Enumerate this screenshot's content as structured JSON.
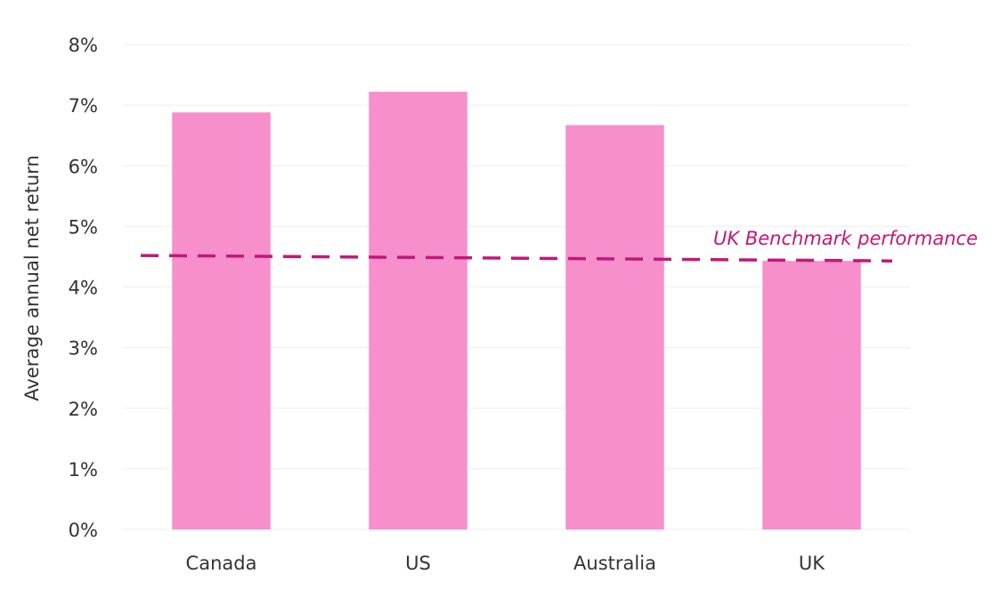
{
  "chart_data": {
    "type": "bar",
    "categories": [
      "Canada",
      "US",
      "Australia",
      "UK"
    ],
    "values": [
      6.88,
      7.22,
      6.67,
      4.43
    ],
    "ylabel": "Average annual net return",
    "xlabel": "",
    "ylim": [
      0,
      8
    ],
    "yticks": [
      "0%",
      "1%",
      "2%",
      "3%",
      "4%",
      "5%",
      "6%",
      "7%",
      "8%"
    ],
    "grid": true,
    "benchmark": {
      "label": "UK Benchmark performance",
      "start": 4.52,
      "end": 4.43
    },
    "colors": {
      "bar": "#f78fcc",
      "benchmark": "#c2187a",
      "grid": "#eeeeee",
      "text": "#333333"
    }
  }
}
